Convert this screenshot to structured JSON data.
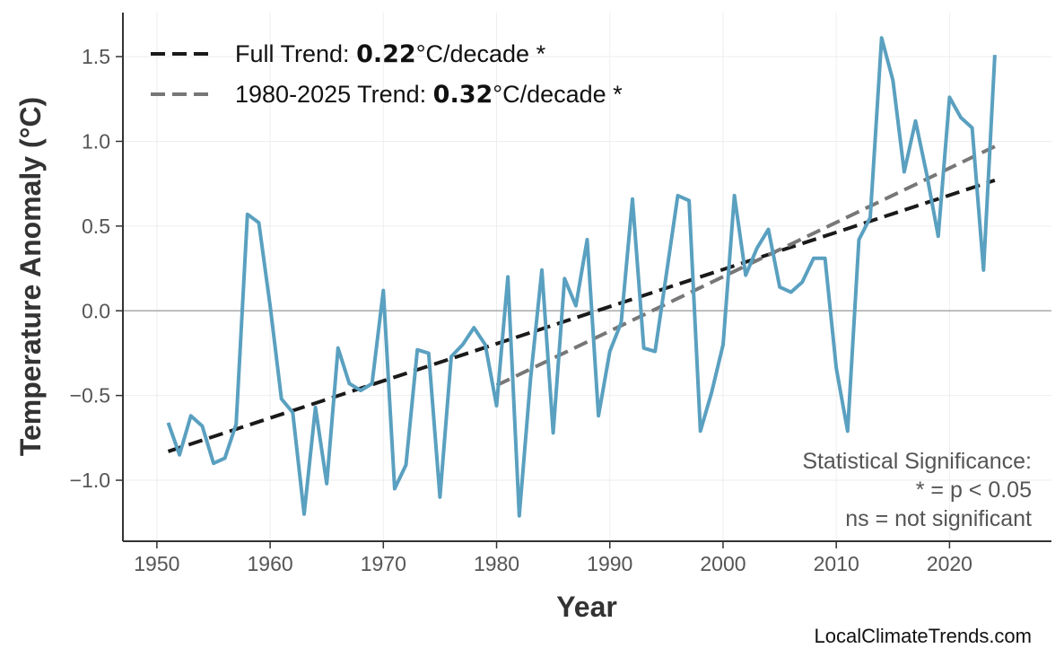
{
  "chart_data": {
    "type": "line",
    "xlabel": "Year",
    "ylabel": "Temperature Anomaly (°C)",
    "xlim": [
      1947,
      2029
    ],
    "ylim": [
      -1.36,
      1.76
    ],
    "xticks": [
      1950,
      1960,
      1970,
      1980,
      1990,
      2000,
      2010,
      2020
    ],
    "yticks": [
      -1.0,
      -0.5,
      0.0,
      0.5,
      1.0,
      1.5
    ],
    "ytick_labels": [
      "−1.0",
      "−0.5",
      "0.0",
      "0.5",
      "1.0",
      "1.5"
    ],
    "grid": true,
    "series_color": "#5aa0c0",
    "x": [
      1951,
      1952,
      1953,
      1954,
      1955,
      1956,
      1957,
      1958,
      1959,
      1960,
      1961,
      1962,
      1963,
      1964,
      1965,
      1966,
      1967,
      1968,
      1969,
      1970,
      1971,
      1972,
      1973,
      1974,
      1975,
      1976,
      1977,
      1978,
      1979,
      1980,
      1981,
      1982,
      1983,
      1984,
      1985,
      1986,
      1987,
      1988,
      1989,
      1990,
      1991,
      1992,
      1993,
      1994,
      1995,
      1996,
      1997,
      1998,
      1999,
      2000,
      2001,
      2002,
      2003,
      2004,
      2005,
      2006,
      2007,
      2008,
      2009,
      2010,
      2011,
      2012,
      2013,
      2014,
      2015,
      2016,
      2017,
      2018,
      2019,
      2020,
      2021,
      2022,
      2023,
      2024
    ],
    "y": [
      -0.66,
      -0.85,
      -0.62,
      -0.68,
      -0.9,
      -0.87,
      -0.67,
      0.57,
      0.52,
      0.03,
      -0.52,
      -0.6,
      -1.2,
      -0.57,
      -1.02,
      -0.22,
      -0.43,
      -0.47,
      -0.43,
      0.12,
      -1.05,
      -0.91,
      -0.23,
      -0.25,
      -1.1,
      -0.27,
      -0.2,
      -0.1,
      -0.2,
      -0.56,
      0.2,
      -1.21,
      -0.4,
      0.24,
      -0.72,
      0.19,
      0.03,
      0.42,
      -0.62,
      -0.24,
      -0.07,
      0.66,
      -0.22,
      -0.24,
      0.22,
      0.68,
      0.65,
      -0.71,
      -0.48,
      -0.2,
      0.68,
      0.21,
      0.37,
      0.48,
      0.14,
      0.11,
      0.17,
      0.31,
      0.31,
      -0.34,
      -0.71,
      0.42,
      0.55,
      1.61,
      1.36,
      0.82,
      1.12,
      0.8,
      0.44,
      1.26,
      1.14,
      1.08,
      0.24,
      1.51
    ],
    "trends": [
      {
        "label_prefix": "Full Trend: ",
        "value": "0.22",
        "label_suffix": "°C/decade *",
        "color": "#1a1a1a",
        "x": [
          1951,
          2024
        ],
        "y": [
          -0.83,
          0.77
        ]
      },
      {
        "label_prefix": "1980-2025 Trend: ",
        "value": "0.32",
        "label_suffix": "°C/decade *",
        "color": "#777777",
        "x": [
          1980,
          2024
        ],
        "y": [
          -0.44,
          0.97
        ]
      }
    ],
    "legend_position": "top-left",
    "annotation": [
      "Statistical Significance:",
      "* = p < 0.05",
      "ns = not significant"
    ],
    "watermark": "LocalClimateTrends.com"
  }
}
